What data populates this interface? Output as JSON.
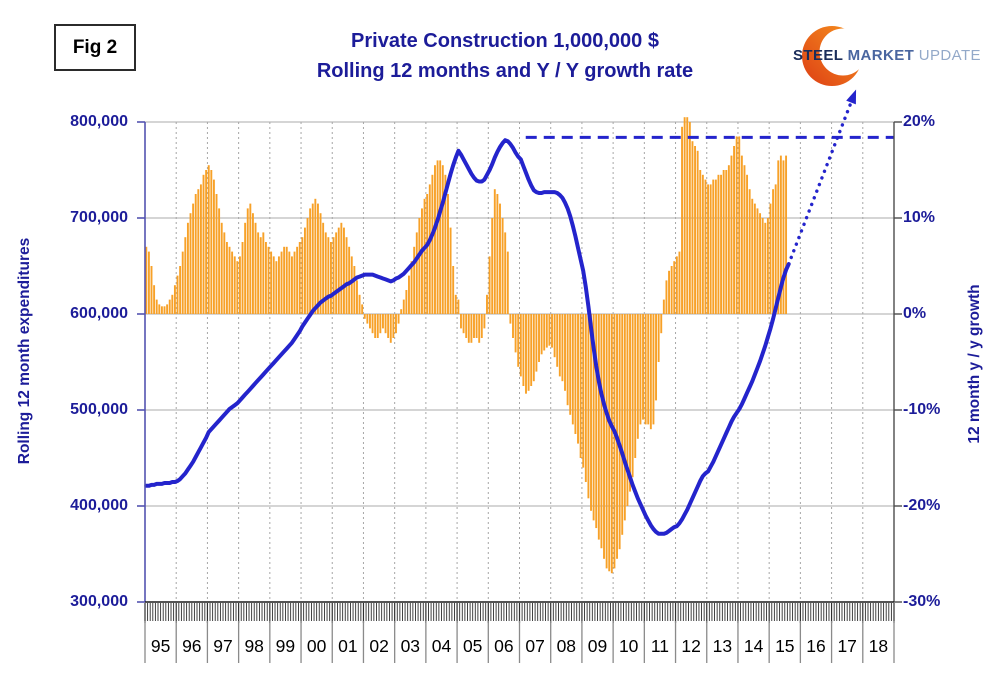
{
  "fig_label": "Fig 2",
  "title": {
    "line1": "Private Construction 1,000,000 $",
    "line2": "Rolling 12 months and Y / Y growth rate"
  },
  "logo": {
    "steel": "STEEL",
    "market": "MARKET",
    "update": "UPDATE"
  },
  "left_axis": {
    "title": "Rolling 12 month expenditures",
    "tick_labels": [
      "800,000",
      "700,000",
      "600,000",
      "500,000",
      "400,000",
      "300,000"
    ],
    "min": 300000,
    "max": 800000
  },
  "right_axis": {
    "title": "12 month y / y growth",
    "tick_labels": [
      "20%",
      "10%",
      "0%",
      "-10%",
      "-20%",
      "-30%"
    ],
    "min": -30,
    "max": 20
  },
  "x_axis": {
    "year_labels": [
      "95",
      "96",
      "97",
      "98",
      "99",
      "00",
      "01",
      "02",
      "03",
      "04",
      "05",
      "06",
      "07",
      "08",
      "09",
      "10",
      "11",
      "12",
      "13",
      "14",
      "15",
      "16",
      "17",
      "18"
    ],
    "start_year": 1995,
    "end_year_exclusive": 2019
  },
  "colors": {
    "navy_text": "#1c1c99",
    "line_blue": "#2424cc",
    "bar_orange": "#f7a128",
    "grid_gray": "#ababab",
    "vgrid_gray": "#a6a6a6",
    "axis_dark": "#4d4d4d",
    "left_axis_line": "#5454b0",
    "tick_band": "#2e2e2e",
    "year_separator": "#8a8a8a",
    "year_text": "#000000",
    "logo_steel": "#1b2d5a",
    "logo_market": "#4a66a0",
    "logo_update": "#93a9c9",
    "logo_orange_light": "#f7941e",
    "logo_orange_dark": "#dd3e15"
  },
  "chart_data": {
    "type": "bar+line combo, monthly",
    "title": "Private Construction 1,000,000 $ — Rolling 12 months and Y / Y growth rate",
    "x_range_years": [
      1995,
      2019
    ],
    "grid": "horizontal solid every 100,000 (left) / 10% (right); vertical dotted at year boundaries",
    "bar_series": {
      "name": "Y / Y growth rate",
      "axis": "right",
      "unit": "%",
      "start": "1995-01",
      "monthly_values": [
        7,
        6.5,
        5,
        3,
        1.5,
        1,
        0.8,
        0.8,
        1,
        1.5,
        2,
        3,
        4,
        5,
        6.5,
        8,
        9.5,
        10.5,
        11.5,
        12.5,
        13,
        13.5,
        14.5,
        15,
        15.5,
        15,
        14,
        12.5,
        11,
        9.5,
        8.5,
        7.5,
        7,
        6.5,
        6,
        5.5,
        6,
        7.5,
        9.5,
        11,
        11.5,
        10.5,
        9.5,
        8.5,
        8,
        8.5,
        7.5,
        7,
        6.5,
        6,
        5.5,
        6,
        6.5,
        7,
        7,
        6.5,
        6,
        6.5,
        7,
        7.5,
        8,
        9,
        10,
        11,
        11.5,
        12,
        11.5,
        10.5,
        9.5,
        8.5,
        8,
        7.5,
        8,
        8.5,
        9,
        9.5,
        9,
        8,
        7,
        6,
        5,
        3.5,
        2,
        1,
        -0.5,
        -1,
        -1.5,
        -2,
        -2.5,
        -2.5,
        -2,
        -1.5,
        -2,
        -2.5,
        -3,
        -2.5,
        -2,
        -1,
        0.5,
        1.5,
        2.5,
        4,
        5.5,
        7,
        8.5,
        10,
        11,
        12,
        12.5,
        13.5,
        14.5,
        15.5,
        16,
        16,
        15.5,
        14.5,
        12.5,
        9,
        5,
        2,
        1.5,
        -1.5,
        -2,
        -2.5,
        -3,
        -3,
        -2.5,
        -2.5,
        -3,
        -2.5,
        -1.5,
        2,
        6,
        10,
        13,
        12.5,
        11.5,
        10,
        8.5,
        6.5,
        -1,
        -2.5,
        -4,
        -5.5,
        -6.5,
        -7.5,
        -8.3,
        -8,
        -7.5,
        -7,
        -6,
        -5,
        -4.2,
        -3.8,
        -3.5,
        -3.3,
        -3.5,
        -4.5,
        -5.5,
        -6.5,
        -7,
        -8,
        -9.5,
        -10.5,
        -11.5,
        -12.5,
        -13.5,
        -15,
        -16,
        -17.5,
        -19.2,
        -20.5,
        -21.5,
        -22.3,
        -23.5,
        -24.4,
        -25.5,
        -26.5,
        -26.8,
        -27,
        -26.5,
        -25.5,
        -24.5,
        -23,
        -21.5,
        -20,
        -18.5,
        -17,
        -15,
        -13,
        -11.5,
        -11,
        -11.5,
        -11.5,
        -12,
        -11.5,
        -9,
        -5,
        -2,
        1.5,
        3.5,
        4.5,
        5,
        5.5,
        6,
        6.5,
        19.5,
        20.5,
        20.5,
        20,
        18,
        17.5,
        17,
        15,
        14.5,
        14,
        13.5,
        13.5,
        14,
        14,
        14.5,
        14.5,
        15,
        15,
        15.5,
        16.5,
        17.5,
        18.5,
        18.5,
        16.5,
        15.5,
        14.5,
        13,
        12,
        11.5,
        11,
        10.5,
        10,
        9.5,
        10,
        11.5,
        13,
        13.5,
        16,
        16.5,
        16,
        16.5
      ]
    },
    "line_series": {
      "name": "Rolling 12 month expenditures",
      "axis": "left",
      "unit": "million $",
      "scale": 1000,
      "start": "1995-01",
      "monthly_values": [
        421,
        421,
        422,
        422,
        423,
        423,
        423,
        424,
        424,
        424,
        425,
        425,
        426,
        428,
        431,
        434,
        438,
        442,
        446,
        451,
        456,
        461,
        466,
        471,
        477,
        480,
        483,
        486,
        489,
        492,
        495,
        498,
        501,
        503,
        505,
        507,
        510,
        513,
        516,
        519,
        522,
        525,
        528,
        531,
        534,
        537,
        540,
        543,
        546,
        549,
        552,
        555,
        558,
        561,
        564,
        567,
        570,
        574,
        578,
        582,
        587,
        591,
        595,
        599,
        603,
        606,
        609,
        612,
        614,
        616,
        618,
        619,
        621,
        623,
        625,
        627,
        629,
        631,
        632,
        634,
        636,
        638,
        639,
        640,
        641,
        641,
        641,
        641,
        640,
        639,
        638,
        637,
        636,
        635,
        634,
        635,
        637,
        638,
        640,
        642,
        645,
        648,
        651,
        654,
        658,
        662,
        666,
        669,
        672,
        677,
        683,
        690,
        698,
        707,
        716,
        726,
        736,
        746,
        755,
        763,
        770,
        766,
        761,
        756,
        751,
        746,
        742,
        739,
        738,
        738,
        740,
        745,
        750,
        756,
        763,
        769,
        774,
        778,
        781,
        780,
        777,
        773,
        768,
        764,
        761,
        754,
        747,
        740,
        734,
        729,
        727,
        726,
        726,
        727,
        727,
        727,
        727,
        727,
        726,
        724,
        721,
        716,
        710,
        702,
        692,
        681,
        669,
        657,
        645,
        628,
        608,
        586,
        565,
        546,
        530,
        517,
        506,
        497,
        489,
        483,
        478,
        471,
        463,
        455,
        446,
        438,
        430,
        422,
        415,
        408,
        402,
        396,
        390,
        385,
        380,
        376,
        373,
        371,
        371,
        371,
        372,
        374,
        376,
        378,
        379,
        382,
        386,
        391,
        396,
        402,
        408,
        414,
        420,
        426,
        431,
        434,
        436,
        441,
        446,
        452,
        458,
        464,
        470,
        476,
        482,
        488,
        493,
        497,
        501,
        506,
        512,
        518,
        524,
        530,
        537,
        544,
        551,
        559,
        567,
        576,
        585,
        595,
        606,
        617,
        628,
        638,
        646,
        652
      ]
    },
    "reference_line": {
      "style": "dashed",
      "axis": "right",
      "value_pct": 18.4,
      "start_year": 2007.2,
      "end_year": 2019
    },
    "projection_arrow": {
      "style": "dotted with arrowhead",
      "from_year": 2015.67,
      "from_value": 652000,
      "to_year": 2017.75,
      "to_value": 831000,
      "meaning": "projected continued growth beyond end of data"
    }
  }
}
